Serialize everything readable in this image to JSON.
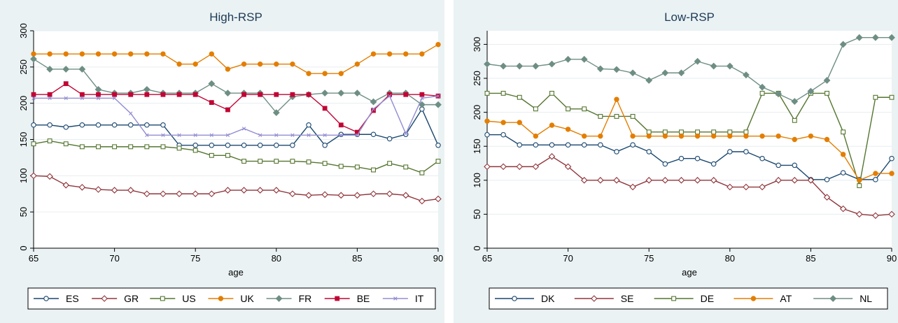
{
  "chart_data": [
    {
      "type": "line",
      "title": "High-RSP",
      "xlabel": "age",
      "ylabel": "",
      "xlim": [
        65,
        90
      ],
      "ylim": [
        0,
        300
      ],
      "xticks": [
        "65",
        "70",
        "75",
        "80",
        "85",
        "90"
      ],
      "yticks": [
        "0",
        "50",
        "100",
        "150",
        "200",
        "250",
        "300"
      ],
      "grid": "horizontal",
      "legend_position": "bottom",
      "x": [
        65,
        66,
        67,
        68,
        69,
        70,
        71,
        72,
        73,
        74,
        75,
        76,
        77,
        78,
        79,
        80,
        81,
        82,
        83,
        84,
        85,
        86,
        87,
        88,
        89,
        90
      ],
      "series": [
        {
          "name": "ES",
          "color": "#1a476f",
          "marker": "circle",
          "values": [
            170,
            170,
            167,
            170,
            170,
            170,
            170,
            170,
            170,
            142,
            142,
            142,
            142,
            142,
            142,
            142,
            142,
            170,
            142,
            157,
            157,
            157,
            151,
            157,
            192,
            142
          ]
        },
        {
          "name": "GR",
          "color": "#90353b",
          "marker": "diamond",
          "values": [
            100,
            99,
            87,
            84,
            81,
            80,
            80,
            75,
            75,
            75,
            75,
            75,
            80,
            80,
            80,
            80,
            75,
            73,
            74,
            73,
            73,
            75,
            75,
            73,
            65,
            68
          ]
        },
        {
          "name": "US",
          "color": "#55752f",
          "marker": "square",
          "values": [
            144,
            148,
            144,
            140,
            140,
            140,
            140,
            140,
            140,
            138,
            135,
            128,
            128,
            120,
            120,
            120,
            120,
            119,
            117,
            113,
            112,
            108,
            117,
            112,
            104,
            120
          ]
        },
        {
          "name": "UK",
          "color": "#e37e00",
          "marker": "dot",
          "values": [
            268,
            268,
            268,
            268,
            268,
            268,
            268,
            268,
            268,
            254,
            254,
            268,
            247,
            254,
            254,
            254,
            254,
            241,
            241,
            241,
            254,
            268,
            268,
            268,
            268,
            281
          ]
        },
        {
          "name": "FR",
          "color": "#6e8e84",
          "marker": "diamond-filled",
          "values": [
            261,
            247,
            247,
            247,
            219,
            214,
            214,
            219,
            214,
            214,
            214,
            227,
            214,
            214,
            214,
            187,
            209,
            212,
            214,
            214,
            214,
            202,
            214,
            214,
            198,
            198
          ]
        },
        {
          "name": "BE",
          "color": "#c10534",
          "marker": "square-filled",
          "values": [
            212,
            212,
            227,
            212,
            212,
            212,
            212,
            212,
            212,
            212,
            212,
            201,
            191,
            212,
            212,
            212,
            212,
            212,
            193,
            170,
            160,
            190,
            212,
            212,
            212,
            210
          ]
        },
        {
          "name": "IT",
          "color": "#938dd2",
          "marker": "x",
          "values": [
            207,
            207,
            207,
            207,
            207,
            207,
            186,
            156,
            156,
            156,
            156,
            156,
            156,
            165,
            156,
            156,
            156,
            156,
            156,
            156,
            156,
            192,
            210,
            158,
            207,
            210
          ]
        }
      ]
    },
    {
      "type": "line",
      "title": "Low-RSP",
      "xlabel": "age",
      "ylabel": "",
      "xlim": [
        65,
        90
      ],
      "ylim": [
        0,
        320
      ],
      "xticks": [
        "65",
        "70",
        "75",
        "80",
        "85",
        "90"
      ],
      "yticks": [
        "0",
        "50",
        "100",
        "150",
        "200",
        "250",
        "300"
      ],
      "grid": "horizontal",
      "legend_position": "bottom",
      "x": [
        65,
        66,
        67,
        68,
        69,
        70,
        71,
        72,
        73,
        74,
        75,
        76,
        77,
        78,
        79,
        80,
        81,
        82,
        83,
        84,
        85,
        86,
        87,
        88,
        89,
        90
      ],
      "series": [
        {
          "name": "DK",
          "color": "#1a476f",
          "marker": "circle",
          "values": [
            167,
            167,
            152,
            152,
            152,
            152,
            152,
            152,
            142,
            152,
            142,
            124,
            132,
            132,
            124,
            142,
            142,
            132,
            122,
            122,
            101,
            101,
            111,
            101,
            101,
            132
          ]
        },
        {
          "name": "SE",
          "color": "#90353b",
          "marker": "diamond",
          "values": [
            120,
            120,
            120,
            120,
            135,
            120,
            100,
            100,
            100,
            90,
            100,
            100,
            100,
            100,
            100,
            90,
            90,
            90,
            100,
            100,
            100,
            75,
            58,
            50,
            48,
            50
          ]
        },
        {
          "name": "DE",
          "color": "#55752f",
          "marker": "square",
          "values": [
            228,
            228,
            222,
            205,
            228,
            205,
            205,
            194,
            194,
            194,
            171,
            171,
            171,
            171,
            171,
            171,
            171,
            228,
            228,
            188,
            228,
            228,
            171,
            92,
            222,
            222
          ]
        },
        {
          "name": "AT",
          "color": "#e37e00",
          "marker": "dot",
          "values": [
            187,
            185,
            185,
            165,
            181,
            175,
            165,
            165,
            219,
            165,
            165,
            165,
            165,
            165,
            165,
            165,
            165,
            165,
            165,
            160,
            165,
            160,
            138,
            100,
            110,
            110
          ]
        },
        {
          "name": "NL",
          "color": "#6e8e84",
          "marker": "diamond-filled",
          "values": [
            271,
            268,
            268,
            268,
            271,
            278,
            278,
            264,
            263,
            258,
            247,
            258,
            258,
            275,
            268,
            268,
            255,
            237,
            227,
            216,
            231,
            247,
            300,
            310,
            310,
            310
          ]
        }
      ]
    }
  ]
}
